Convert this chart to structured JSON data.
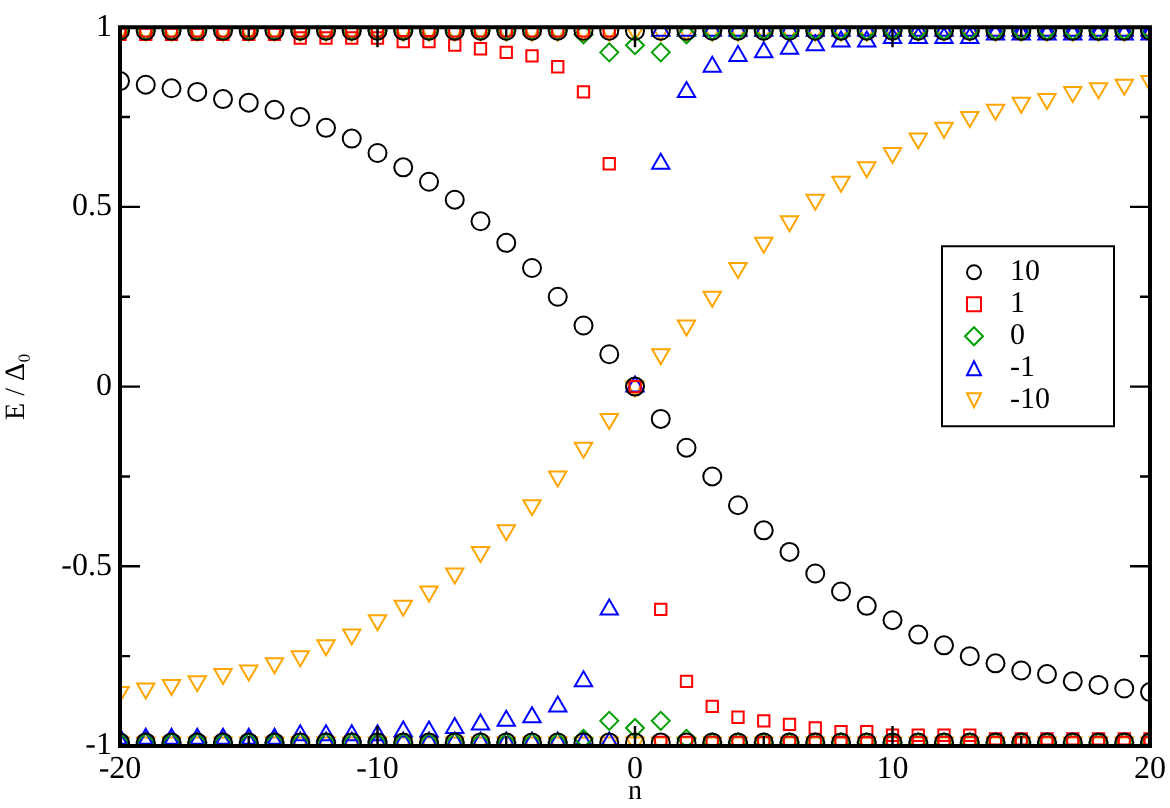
{
  "chart_data": {
    "type": "scatter",
    "xlabel": "n",
    "ylabel": "E / Δ₀",
    "xlim": [
      -20,
      20
    ],
    "xticks": [
      -20,
      {
        "value": -15,
        "label": null
      },
      -10,
      {
        "value": -5,
        "label": null
      },
      0,
      {
        "value": 5,
        "label": null
      },
      10,
      {
        "value": 15,
        "label": null
      },
      20
    ],
    "ylim": [
      -1,
      1
    ],
    "yticks": [
      -1,
      {
        "value": -0.75,
        "label": null
      },
      -0.5,
      {
        "value": -0.25,
        "label": null
      },
      0,
      {
        "value": 0.25,
        "label": null
      },
      0.5,
      {
        "value": 0.75,
        "label": null
      },
      1
    ],
    "grid": false,
    "legend": "right",
    "series": [
      {
        "name": "10",
        "color": "#000000",
        "marker": "circle",
        "x": [
          -20,
          -19,
          -18,
          -17,
          -16,
          -15,
          -14,
          -13,
          -12,
          -11,
          -10,
          -9,
          -8,
          -7,
          -6,
          -5,
          -4,
          -3,
          -2,
          -1,
          0,
          1,
          2,
          3,
          4,
          5,
          6,
          7,
          8,
          9,
          10,
          11,
          12,
          13,
          14,
          15,
          16,
          17,
          18,
          19,
          20,
          -20,
          -19,
          -18,
          -17,
          -16,
          -15,
          -14,
          -13,
          -12,
          -11,
          -10,
          -9,
          -8,
          -7,
          -6,
          -5,
          -4,
          -3,
          -2,
          -1,
          0,
          1,
          2,
          3,
          4,
          5,
          6,
          7,
          8,
          9,
          10,
          11,
          12,
          13,
          14,
          15,
          16,
          17,
          18,
          19,
          20,
          -20,
          -19,
          -18,
          -17,
          -16,
          -15,
          -14,
          -13,
          -12,
          -11,
          -10,
          -9,
          -8,
          -7,
          -6,
          -5,
          -4,
          -3,
          -2,
          -1,
          0,
          1,
          2,
          3,
          4,
          5,
          6,
          7,
          8,
          9,
          10,
          11,
          12,
          13,
          14,
          15,
          16,
          17,
          18,
          19,
          20
        ],
        "values": [
          0.85,
          0.84,
          0.83,
          0.82,
          0.8,
          0.79,
          0.77,
          0.75,
          0.72,
          0.69,
          0.65,
          0.61,
          0.57,
          0.52,
          0.46,
          0.4,
          0.33,
          0.25,
          0.17,
          0.09,
          0,
          -0.09,
          -0.17,
          -0.25,
          -0.33,
          -0.4,
          -0.46,
          -0.52,
          -0.57,
          -0.61,
          -0.65,
          -0.69,
          -0.72,
          -0.75,
          -0.77,
          -0.79,
          -0.8,
          -0.82,
          -0.83,
          -0.84,
          -0.85,
          0.99,
          0.99,
          0.99,
          0.99,
          0.99,
          0.99,
          0.99,
          0.99,
          0.99,
          0.99,
          0.99,
          0.99,
          0.99,
          0.99,
          0.99,
          0.99,
          0.99,
          0.99,
          0.99,
          0.99,
          0.99,
          0.99,
          0.99,
          0.99,
          0.99,
          0.99,
          0.99,
          0.99,
          0.99,
          0.99,
          0.99,
          0.99,
          0.99,
          0.99,
          0.99,
          0.99,
          0.99,
          0.99,
          0.99,
          0.99,
          0.99,
          -0.99,
          -0.99,
          -0.99,
          -0.99,
          -0.99,
          -0.99,
          -0.99,
          -0.99,
          -0.99,
          -0.99,
          -0.99,
          -0.99,
          -0.99,
          -0.99,
          -0.99,
          -0.99,
          -0.99,
          -0.99,
          -0.99,
          -0.99,
          -0.99,
          -0.99,
          -0.99,
          -0.99,
          -0.99,
          -0.99,
          -0.99,
          -0.99,
          -0.99,
          -0.99,
          -0.99,
          -0.99,
          -0.99,
          -0.99,
          -0.99,
          -0.99,
          -0.99,
          -0.99,
          -0.99,
          -0.99,
          -0.99
        ]
      },
      {
        "name": "1",
        "color": "#ff0000",
        "marker": "square",
        "x": [
          -20,
          -19,
          -18,
          -17,
          -16,
          -15,
          -14,
          -13,
          -12,
          -11,
          -10,
          -9,
          -8,
          -7,
          -6,
          -5,
          -4,
          -3,
          -2,
          -1,
          0,
          1,
          2,
          3,
          4,
          5,
          6,
          7,
          8,
          9,
          10,
          11,
          12,
          13,
          14,
          15,
          16,
          17,
          18,
          19,
          20,
          -20,
          -19,
          -18,
          -17,
          -16,
          -15,
          -14,
          -13,
          -12,
          -11,
          -10,
          -9,
          -8,
          -7,
          -6,
          -5,
          -4,
          -3,
          -2,
          -1,
          1,
          2,
          3,
          4,
          5,
          6,
          7,
          8,
          9,
          10,
          11,
          12,
          13,
          14,
          15,
          16,
          17,
          18,
          19,
          20
        ],
        "values": [
          0.98,
          0.98,
          0.98,
          0.98,
          0.98,
          0.98,
          0.98,
          0.97,
          0.97,
          0.97,
          0.97,
          0.96,
          0.96,
          0.95,
          0.94,
          0.93,
          0.92,
          0.89,
          0.82,
          0.62,
          0,
          -0.62,
          -0.82,
          -0.89,
          -0.92,
          -0.93,
          -0.94,
          -0.95,
          -0.96,
          -0.96,
          -0.97,
          -0.97,
          -0.97,
          -0.97,
          -0.98,
          -0.98,
          -0.98,
          -0.98,
          -0.98,
          -0.98,
          -0.98,
          0.99,
          0.99,
          0.99,
          0.99,
          0.99,
          0.99,
          0.99,
          0.99,
          0.99,
          0.99,
          0.99,
          0.99,
          0.99,
          0.99,
          0.99,
          0.99,
          0.99,
          0.99,
          0.99,
          0.99,
          -0.99,
          -0.99,
          -0.99,
          -0.99,
          -0.99,
          -0.99,
          -0.99,
          -0.99,
          -0.99,
          -0.99,
          -0.99,
          -0.99,
          -0.99,
          -0.99,
          -0.99,
          -0.99,
          -0.99,
          -0.99,
          -0.99,
          -0.99
        ]
      },
      {
        "name": "0",
        "color": "#00a000",
        "marker": "diamond",
        "x": [
          -20,
          -19,
          -18,
          -17,
          -16,
          -15,
          -14,
          -13,
          -12,
          -11,
          -10,
          -9,
          -8,
          -7,
          -6,
          -5,
          -4,
          -3,
          -2,
          -1,
          0,
          1,
          2,
          3,
          4,
          5,
          6,
          7,
          8,
          9,
          10,
          11,
          12,
          13,
          14,
          15,
          16,
          17,
          18,
          19,
          20,
          -20,
          -19,
          -18,
          -17,
          -16,
          -15,
          -14,
          -13,
          -12,
          -11,
          -10,
          -9,
          -8,
          -7,
          -6,
          -5,
          -4,
          -3,
          -2,
          -1,
          0,
          1,
          2,
          3,
          4,
          5,
          6,
          7,
          8,
          9,
          10,
          11,
          12,
          13,
          14,
          15,
          16,
          17,
          18,
          19,
          20
        ],
        "values": [
          0.99,
          0.99,
          0.99,
          0.99,
          0.99,
          0.99,
          0.99,
          0.99,
          0.99,
          0.99,
          0.99,
          0.99,
          0.99,
          0.99,
          0.99,
          0.99,
          0.99,
          0.99,
          0.98,
          0.93,
          0.95,
          0.93,
          0.98,
          0.99,
          0.99,
          0.99,
          0.99,
          0.99,
          0.99,
          0.99,
          0.99,
          0.99,
          0.99,
          0.99,
          0.99,
          0.99,
          0.99,
          0.99,
          0.99,
          0.99,
          0.99,
          -0.99,
          -0.99,
          -0.99,
          -0.99,
          -0.99,
          -0.99,
          -0.99,
          -0.99,
          -0.99,
          -0.99,
          -0.99,
          -0.99,
          -0.99,
          -0.99,
          -0.99,
          -0.99,
          -0.99,
          -0.99,
          -0.98,
          -0.93,
          -0.95,
          -0.93,
          -0.98,
          -0.99,
          -0.99,
          -0.99,
          -0.99,
          -0.99,
          -0.99,
          -0.99,
          -0.99,
          -0.99,
          -0.99,
          -0.99,
          -0.99,
          -0.99,
          -0.99,
          -0.99,
          -0.99,
          -0.99,
          -0.99
        ]
      },
      {
        "name": "-1",
        "color": "#0000ff",
        "marker": "triangle",
        "x": [
          -20,
          -19,
          -18,
          -17,
          -16,
          -15,
          -14,
          -13,
          -12,
          -11,
          -10,
          -9,
          -8,
          -7,
          -6,
          -5,
          -4,
          -3,
          -2,
          -1,
          0,
          1,
          2,
          3,
          4,
          5,
          6,
          7,
          8,
          9,
          10,
          11,
          12,
          13,
          14,
          15,
          16,
          17,
          18,
          19,
          20,
          -20,
          -19,
          -18,
          -17,
          -16,
          -15,
          -14,
          -13,
          -12,
          -11,
          -10,
          -9,
          -8,
          -7,
          -6,
          -5,
          -4,
          -3,
          -2,
          -1,
          1,
          2,
          3,
          4,
          5,
          6,
          7,
          8,
          9,
          10,
          11,
          12,
          13,
          14,
          15,
          16,
          17,
          18,
          19,
          20
        ],
        "values": [
          -0.98,
          -0.98,
          -0.98,
          -0.98,
          -0.98,
          -0.98,
          -0.98,
          -0.97,
          -0.97,
          -0.97,
          -0.97,
          -0.96,
          -0.96,
          -0.95,
          -0.94,
          -0.93,
          -0.92,
          -0.89,
          -0.82,
          -0.62,
          0,
          0.62,
          0.82,
          0.89,
          0.92,
          0.93,
          0.94,
          0.95,
          0.96,
          0.96,
          0.97,
          0.97,
          0.97,
          0.97,
          0.98,
          0.98,
          0.98,
          0.98,
          0.98,
          0.98,
          0.98,
          -0.99,
          -0.99,
          -0.99,
          -0.99,
          -0.99,
          -0.99,
          -0.99,
          -0.99,
          -0.99,
          -0.99,
          -0.99,
          -0.99,
          -0.99,
          -0.99,
          -0.99,
          -0.99,
          -0.99,
          -0.99,
          -0.99,
          -0.99,
          0.99,
          0.99,
          0.99,
          0.99,
          0.99,
          0.99,
          0.99,
          0.99,
          0.99,
          0.99,
          0.99,
          0.99,
          0.99,
          0.99,
          0.99,
          0.99,
          0.99,
          0.99,
          0.99,
          0.99
        ]
      },
      {
        "name": "-10",
        "color": "#ffa500",
        "marker": "triangle_down",
        "x": [
          -20,
          -19,
          -18,
          -17,
          -16,
          -15,
          -14,
          -13,
          -12,
          -11,
          -10,
          -9,
          -8,
          -7,
          -6,
          -5,
          -4,
          -3,
          -2,
          -1,
          0,
          1,
          2,
          3,
          4,
          5,
          6,
          7,
          8,
          9,
          10,
          11,
          12,
          13,
          14,
          15,
          16,
          17,
          18,
          19,
          20,
          -20,
          -19,
          -18,
          -17,
          -16,
          -15,
          -14,
          -13,
          -12,
          -11,
          -10,
          -9,
          -8,
          -7,
          -6,
          -5,
          -4,
          -3,
          -2,
          -1,
          0,
          1,
          2,
          3,
          4,
          5,
          6,
          7,
          8,
          9,
          10,
          11,
          12,
          13,
          14,
          15,
          16,
          17,
          18,
          19,
          20,
          -20,
          -19,
          -18,
          -17,
          -16,
          -15,
          -14,
          -13,
          -12,
          -11,
          -10,
          -9,
          -8,
          -7,
          -6,
          -5,
          -4,
          -3,
          -2,
          -1,
          0,
          1,
          2,
          3,
          4,
          5,
          6,
          7,
          8,
          9,
          10,
          11,
          12,
          13,
          14,
          15,
          16,
          17,
          18,
          19,
          20
        ],
        "values": [
          -0.85,
          -0.84,
          -0.83,
          -0.82,
          -0.8,
          -0.79,
          -0.77,
          -0.75,
          -0.72,
          -0.69,
          -0.65,
          -0.61,
          -0.57,
          -0.52,
          -0.46,
          -0.4,
          -0.33,
          -0.25,
          -0.17,
          -0.09,
          0,
          0.09,
          0.17,
          0.25,
          0.33,
          0.4,
          0.46,
          0.52,
          0.57,
          0.61,
          0.65,
          0.69,
          0.72,
          0.75,
          0.77,
          0.79,
          0.8,
          0.82,
          0.83,
          0.84,
          0.85,
          0.99,
          0.99,
          0.99,
          0.99,
          0.99,
          0.99,
          0.99,
          0.99,
          0.99,
          0.99,
          0.99,
          0.99,
          0.99,
          0.99,
          0.99,
          0.99,
          0.99,
          0.99,
          0.99,
          0.99,
          0.99,
          0.99,
          0.99,
          0.99,
          0.99,
          0.99,
          0.99,
          0.99,
          0.99,
          0.99,
          0.99,
          0.99,
          0.99,
          0.99,
          0.99,
          0.99,
          0.99,
          0.99,
          0.99,
          0.99,
          0.99,
          -0.99,
          -0.99,
          -0.99,
          -0.99,
          -0.99,
          -0.99,
          -0.99,
          -0.99,
          -0.99,
          -0.99,
          -0.99,
          -0.99,
          -0.99,
          -0.99,
          -0.99,
          -0.99,
          -0.99,
          -0.99,
          -0.99,
          -0.99,
          -0.99,
          -0.99,
          -0.99,
          -0.99,
          -0.99,
          -0.99,
          -0.99,
          -0.99,
          -0.99,
          -0.99,
          -0.99,
          -0.99,
          -0.99,
          -0.99,
          -0.99,
          -0.99,
          -0.99,
          -0.99,
          -0.99,
          -0.99,
          -0.99
        ]
      }
    ]
  }
}
